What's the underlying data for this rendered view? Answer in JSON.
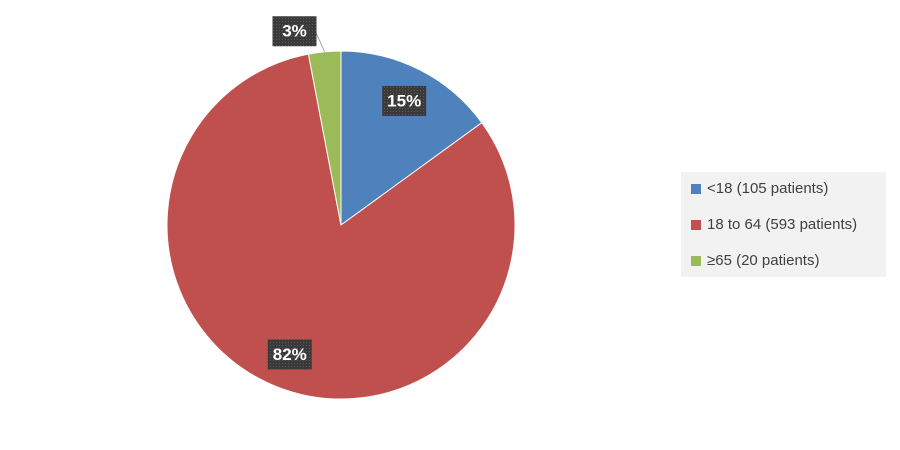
{
  "chart_data": {
    "type": "pie",
    "categories": [
      "<18 (105 patients)",
      "18 to 64 (593 patients)",
      "≥65 (20 patients)"
    ],
    "values": [
      15,
      82,
      3
    ],
    "value_labels": [
      "15%",
      "82%",
      "3%"
    ],
    "colors": [
      "#4f81bd",
      "#c0504d",
      "#9bbb59"
    ],
    "legend": "right"
  }
}
